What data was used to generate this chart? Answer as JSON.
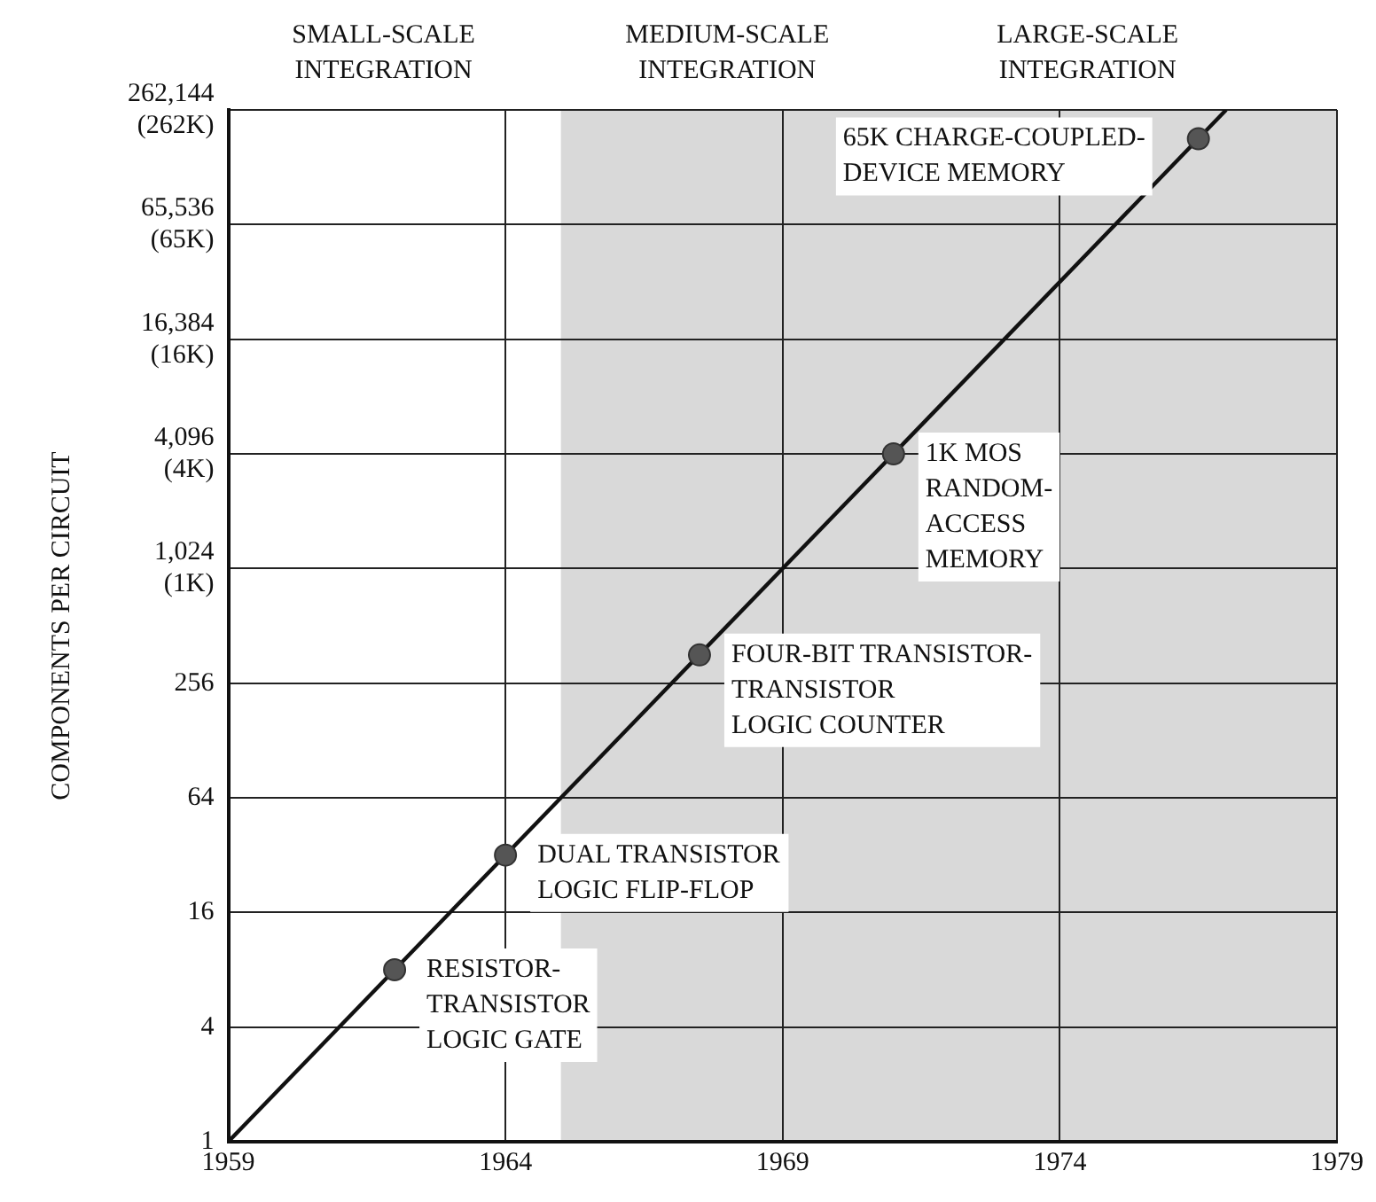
{
  "chart_data": {
    "type": "scatter",
    "ylabel": "COMPONENTS PER CIRCUIT",
    "xlim": [
      1959,
      1979
    ],
    "xticks": [
      1959,
      1964,
      1969,
      1974,
      1979
    ],
    "ylim": [
      1,
      262144
    ],
    "yticks": [
      1,
      4,
      16,
      64,
      256,
      {
        "value": 1024,
        "label": "1,024\n(1K)"
      },
      {
        "value": 4096,
        "label": "4,096\n(4K)"
      },
      {
        "value": 16384,
        "label": "16,384\n(16K)"
      },
      {
        "value": 65536,
        "label": "65,536\n(65K)"
      },
      {
        "value": 262144,
        "label": "262,144\n(262K)"
      }
    ],
    "log": "y",
    "grid": true,
    "legend": false,
    "marker": "circle",
    "bands": [
      {
        "axis": "x",
        "from": 1965,
        "to": 1979,
        "color": "#d9d9d9"
      }
    ],
    "series": [
      {
        "type": "line",
        "color": "#111111",
        "x": [
          1959,
          1977
        ],
        "values": [
          1,
          262144
        ],
        "marker": "none"
      },
      {
        "type": "scatter",
        "color": "#555555",
        "x": [
          1962,
          1964,
          1967.5,
          1971,
          1976.5
        ],
        "values": [
          8,
          32,
          360,
          4096,
          185000
        ]
      }
    ],
    "annotations": [
      "SMALL-SCALE INTEGRATION",
      "MEDIUM-SCALE INTEGRATION",
      "LARGE-SCALE INTEGRATION",
      {
        "text": "RESISTOR-\nTRANSISTOR\nLOGIC GATE",
        "x": 1962,
        "y": 8
      },
      {
        "text": "DUAL TRANSISTOR\nLOGIC FLIP-FLOP",
        "x": 1964,
        "y": 32
      },
      {
        "text": "FOUR-BIT TRANSISTOR-\nTRANSISTOR\nLOGIC COUNTER",
        "x": 1967.5,
        "y": 360
      },
      {
        "text": "1K MOS\nRANDOM-\nACCESS\nMEMORY",
        "x": 1971,
        "y": 4096
      },
      {
        "text": "65K CHARGE-COUPLED-\nDEVICE MEMORY",
        "x": 1976.5,
        "y": 185000
      }
    ]
  }
}
